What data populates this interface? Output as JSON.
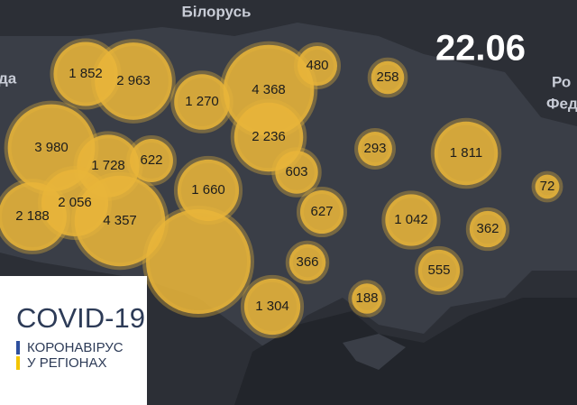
{
  "map_title_date": "22.06",
  "place_labels": [
    "Білорусь",
    "Ро",
    "Фед",
    "да"
  ],
  "legend": {
    "title": "COVID-19",
    "line1": "КОРОНАВІРУС",
    "line2": "У РЕГІОНАХ"
  },
  "bubbles": [
    {
      "value": 1852,
      "label": "1 852"
    },
    {
      "value": 2963,
      "label": "2 963"
    },
    {
      "value": 1270,
      "label": "1 270"
    },
    {
      "value": 4368,
      "label": "4 368"
    },
    {
      "value": 2236,
      "label": "2 236"
    },
    480,
    258,
    {
      "value": 3980,
      "label": "3 980"
    },
    {
      "value": 1728,
      "label": "1 728"
    },
    622,
    293,
    {
      "value": 1811,
      "label": "1 811"
    },
    603,
    {
      "value": 1660,
      "label": "1 660"
    },
    72,
    {
      "value": 2188,
      "label": "2 188"
    },
    {
      "value": 2056,
      "label": "2 056"
    },
    {
      "value": 4357,
      "label": "4 357"
    },
    627,
    {
      "value": 1042,
      "label": "1 042"
    },
    362,
    366,
    555,
    188,
    {
      "value": 1304,
      "label": "1 304"
    }
  ]
}
